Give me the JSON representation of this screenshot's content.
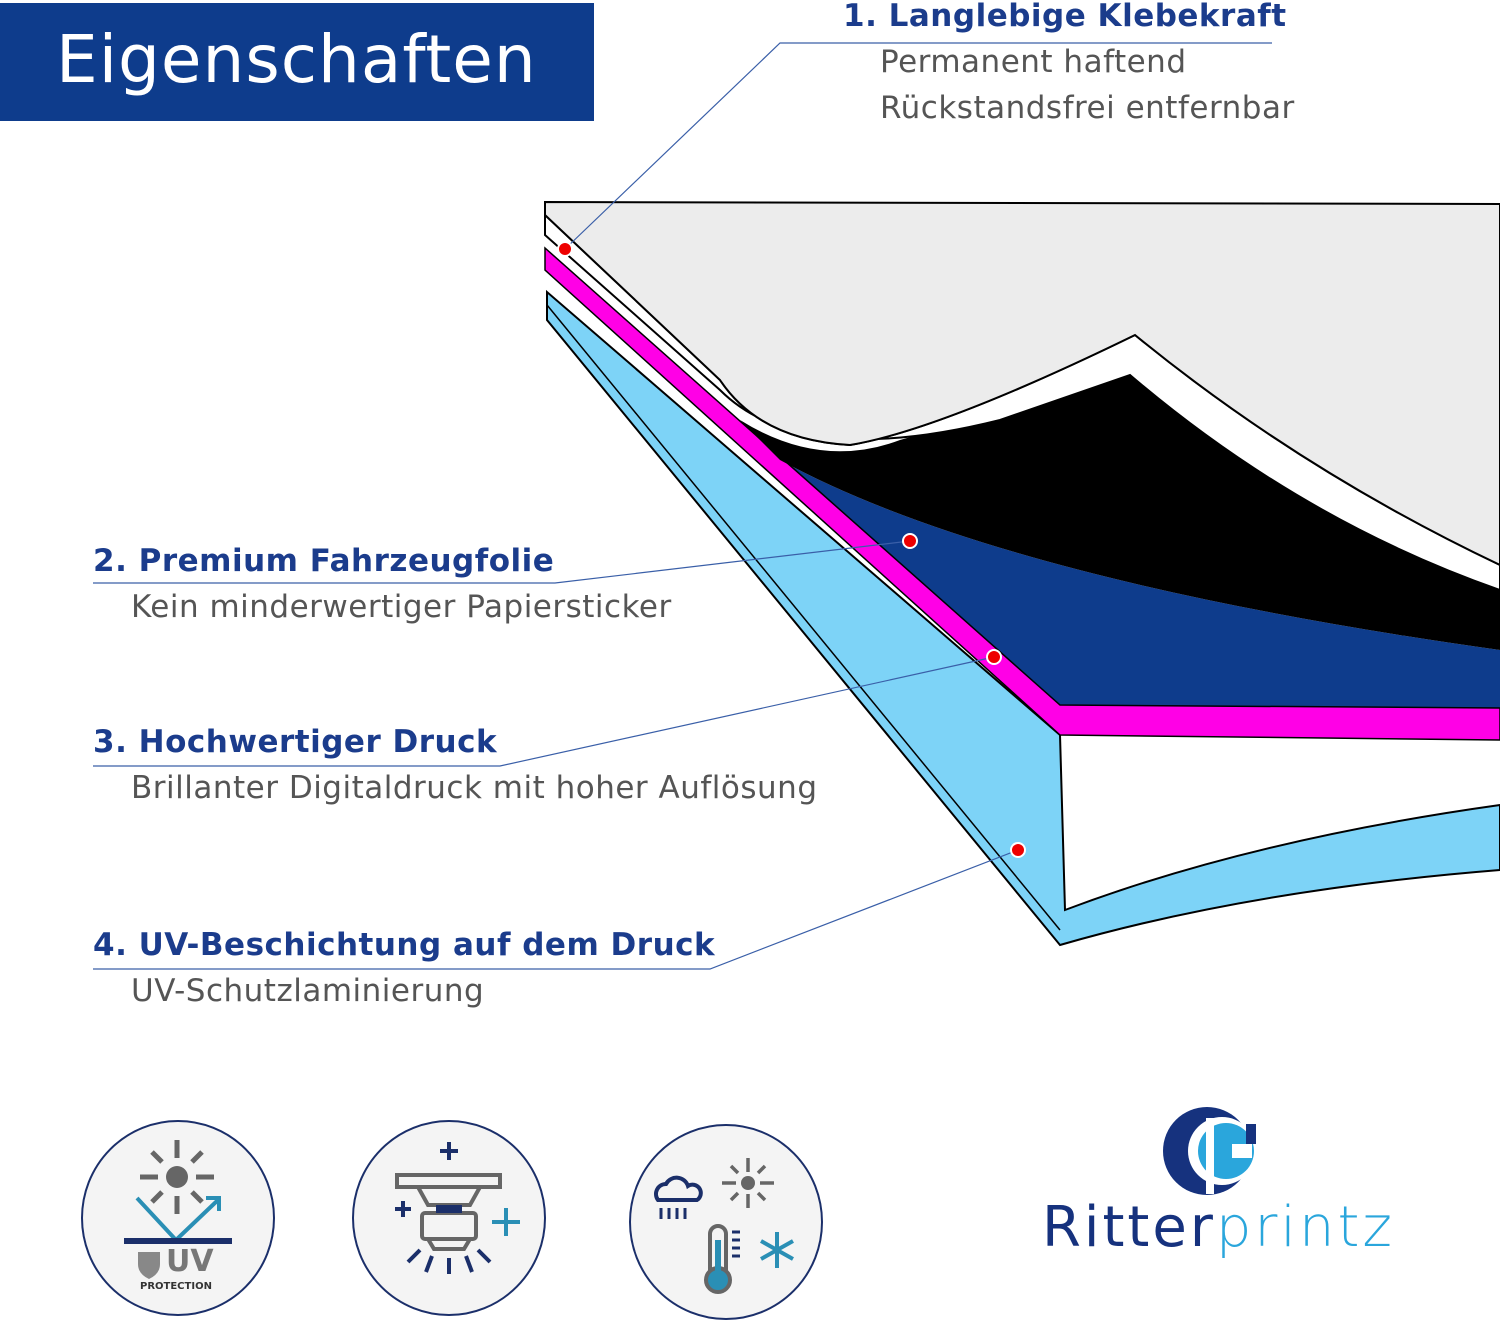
{
  "header": {
    "title": "Eigenschaften"
  },
  "features": [
    {
      "title": "1. Langlebige Klebekraft",
      "lines": [
        "Permanent haftend",
        "Rückstandsfrei entfernbar"
      ]
    },
    {
      "title": "2. Premium Fahrzeugfolie",
      "lines": [
        "Kein minderwertiger Papiersticker"
      ]
    },
    {
      "title": "3. Hochwertiger Druck",
      "lines": [
        "Brillanter Digitaldruck mit hoher Auflösung"
      ]
    },
    {
      "title": "4. UV-Beschichtung auf dem Druck",
      "lines": [
        "UV-Schutzlaminierung"
      ]
    }
  ],
  "icons": {
    "uv_label": "UV",
    "uv_sub": "PROTECTION"
  },
  "logo": {
    "part1": "Ritter",
    "part2": "printz"
  },
  "colors": {
    "brand": "#0e3c8c",
    "accent": "#2aa6dc",
    "magenta": "#ff00e6",
    "lightblue": "#7dd3f7"
  }
}
